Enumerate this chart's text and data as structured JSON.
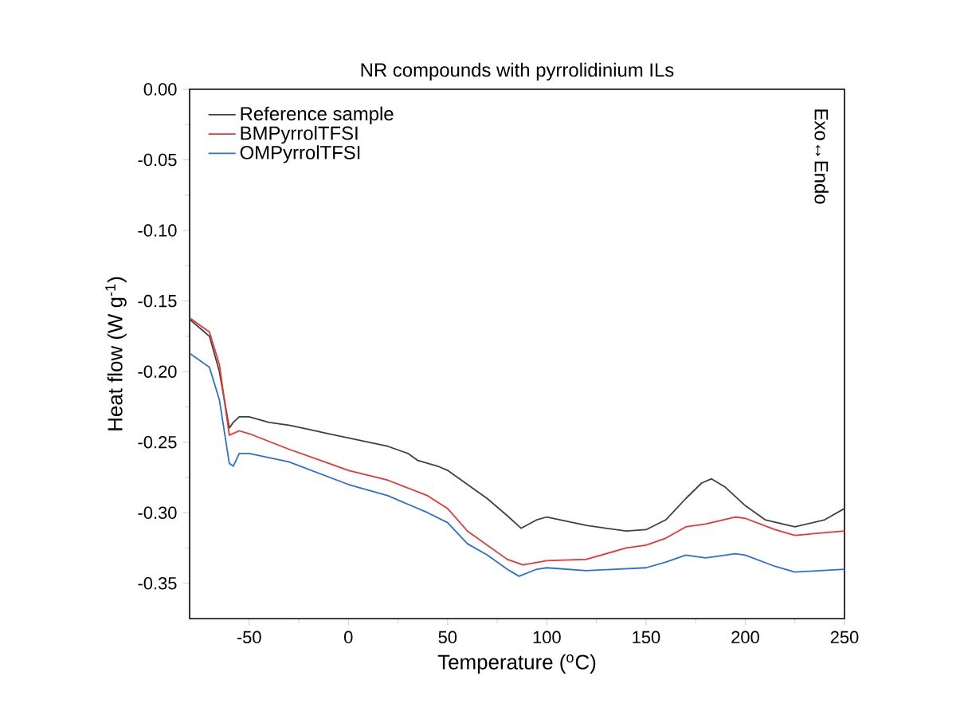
{
  "chart_data": {
    "type": "line",
    "title": "NR compounds with pyrrolidinium ILs",
    "xlabel": "Temperature ($^{o}$C)",
    "ylabel": "Heat flow (W g$^{-1}$)",
    "annotations": [
      "Exo↔Endo"
    ],
    "xlim": [
      -80,
      250
    ],
    "ylim": [
      -0.375,
      0.0
    ],
    "xticks": [
      -50,
      0,
      50,
      100,
      150,
      200,
      250
    ],
    "yticks": [
      {
        "value": -0.35,
        "label": "-0.35"
      },
      {
        "value": -0.3,
        "label": "-0.30"
      },
      {
        "value": -0.25,
        "label": "-0.25"
      },
      {
        "value": -0.2,
        "label": "-0.20"
      },
      {
        "value": -0.15,
        "label": "-0.15"
      },
      {
        "value": -0.1,
        "label": "-0.10"
      },
      {
        "value": -0.05,
        "label": "-0.05"
      },
      {
        "value": 0.0,
        "label": "0.00"
      }
    ],
    "legend": "top left",
    "grid": false,
    "marker": "none",
    "line_style": "solid",
    "series": [
      {
        "name": "Reference sample",
        "color": "#404040",
        "x": [
          -80,
          -70,
          -65,
          -60,
          -58,
          -55,
          -50,
          -40,
          -30,
          -20,
          -10,
          0,
          10,
          20,
          30,
          35,
          45,
          50,
          60,
          70,
          80,
          87,
          95,
          100,
          110,
          120,
          140,
          150,
          160,
          170,
          178,
          183,
          190,
          200,
          210,
          225,
          240,
          250
        ],
        "values": [
          -0.163,
          -0.175,
          -0.2,
          -0.24,
          -0.236,
          -0.232,
          -0.232,
          -0.236,
          -0.238,
          -0.241,
          -0.244,
          -0.247,
          -0.25,
          -0.253,
          -0.258,
          -0.263,
          -0.267,
          -0.27,
          -0.28,
          -0.29,
          -0.302,
          -0.311,
          -0.305,
          -0.303,
          -0.306,
          -0.309,
          -0.313,
          -0.312,
          -0.305,
          -0.29,
          -0.279,
          -0.276,
          -0.282,
          -0.295,
          -0.305,
          -0.31,
          -0.305,
          -0.297
        ]
      },
      {
        "name": "BMPyrrolTFSI",
        "color": "#ee3333",
        "x": [
          -80,
          -70,
          -65,
          -60,
          -55,
          -50,
          -30,
          -10,
          0,
          20,
          40,
          50,
          60,
          70,
          80,
          88,
          100,
          120,
          140,
          150,
          160,
          170,
          180,
          195,
          200,
          215,
          225,
          250
        ],
        "values": [
          -0.162,
          -0.172,
          -0.195,
          -0.245,
          -0.242,
          -0.244,
          -0.255,
          -0.265,
          -0.27,
          -0.277,
          -0.288,
          -0.297,
          -0.313,
          -0.323,
          -0.333,
          -0.337,
          -0.334,
          -0.333,
          -0.325,
          -0.323,
          -0.318,
          -0.31,
          -0.308,
          -0.303,
          -0.304,
          -0.312,
          -0.316,
          -0.313
        ]
      },
      {
        "name": "OMPyrrolTFSI",
        "color": "#2a6fdb",
        "x": [
          -80,
          -70,
          -65,
          -60,
          -58,
          -55,
          -50,
          -30,
          0,
          20,
          40,
          50,
          60,
          70,
          80,
          86,
          95,
          100,
          120,
          150,
          160,
          170,
          180,
          195,
          200,
          215,
          225,
          250
        ],
        "values": [
          -0.187,
          -0.197,
          -0.22,
          -0.265,
          -0.267,
          -0.258,
          -0.258,
          -0.264,
          -0.28,
          -0.288,
          -0.3,
          -0.307,
          -0.322,
          -0.33,
          -0.34,
          -0.345,
          -0.34,
          -0.339,
          -0.341,
          -0.339,
          -0.335,
          -0.33,
          -0.332,
          -0.329,
          -0.33,
          -0.338,
          -0.342,
          -0.34
        ]
      }
    ]
  }
}
